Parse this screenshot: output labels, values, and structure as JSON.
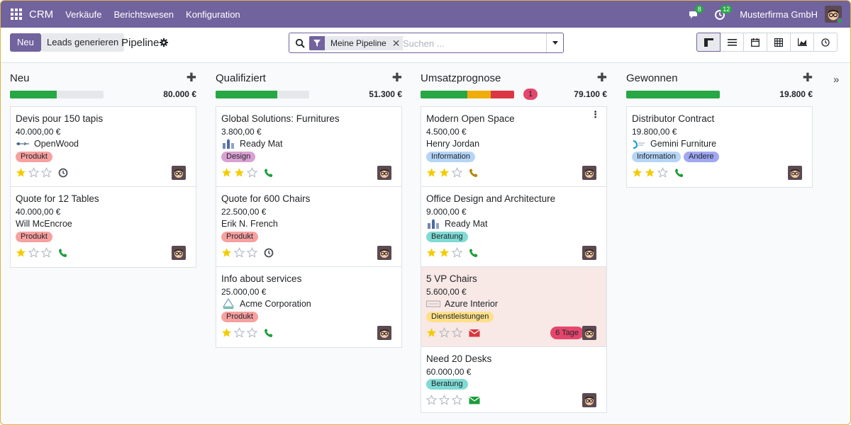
{
  "nav": {
    "brand": "CRM",
    "menu": [
      "Verkäufe",
      "Berichtswesen",
      "Konfiguration"
    ],
    "messages_count": "8",
    "activities_count": "12",
    "company": "Musterfirma GmbH"
  },
  "control": {
    "new_label": "Neu",
    "generate_label": "Leads generieren",
    "title": "Pipeline",
    "facet_label": "Meine Pipeline",
    "search_placeholder": "Suchen ..."
  },
  "colors": {
    "primary": "#71639e",
    "won": "#28a745",
    "planned": "#f0ad0a",
    "overdue": "#dc3545",
    "empty": "#e5e7eb"
  },
  "columns": [
    {
      "title": "Neu",
      "total": "80.000 €",
      "count": "",
      "progress": [
        {
          "color": "#28a745",
          "pct": 50
        }
      ],
      "cards": [
        {
          "name": "Devis pour 150 tapis",
          "amount": "40.000,00 €",
          "partner": "OpenWood",
          "logo": "openwood",
          "tags": [
            {
              "label": "Produkt",
              "color": "#f7a0a0"
            }
          ],
          "stars": 1,
          "activity": "clock",
          "deadline": "",
          "overdue": false
        },
        {
          "name": "Quote for 12 Tables",
          "amount": "40.000,00 €",
          "partner": "Will McEncroe",
          "logo": "",
          "tags": [
            {
              "label": "Produkt",
              "color": "#f7a0a0"
            }
          ],
          "stars": 1,
          "activity": "phone-green",
          "deadline": "",
          "overdue": false
        }
      ]
    },
    {
      "title": "Qualifiziert",
      "total": "51.300 €",
      "count": "",
      "progress": [
        {
          "color": "#28a745",
          "pct": 66
        }
      ],
      "cards": [
        {
          "name": "Global Solutions: Furnitures",
          "amount": "3.800,00 €",
          "partner": "Ready Mat",
          "logo": "readymat",
          "tags": [
            {
              "label": "Design",
              "color": "#d9a1d1"
            }
          ],
          "stars": 2,
          "activity": "phone-green",
          "deadline": "",
          "overdue": false
        },
        {
          "name": "Quote for 600 Chairs",
          "amount": "22.500,00 €",
          "partner": "Erik N. French",
          "logo": "",
          "tags": [
            {
              "label": "Produkt",
              "color": "#f7a0a0"
            }
          ],
          "stars": 1,
          "activity": "clock",
          "deadline": "",
          "overdue": false
        },
        {
          "name": "Info about services",
          "amount": "25.000,00 €",
          "partner": "Acme Corporation",
          "logo": "acme",
          "tags": [
            {
              "label": "Produkt",
              "color": "#f7a0a0"
            }
          ],
          "stars": 1,
          "activity": "phone-green",
          "deadline": "",
          "overdue": false
        }
      ]
    },
    {
      "title": "Umsatzprognose",
      "total": "79.100 €",
      "count": "1",
      "progress": [
        {
          "color": "#28a745",
          "pct": 50
        },
        {
          "color": "#f0ad0a",
          "pct": 25
        },
        {
          "color": "#dc3545",
          "pct": 25
        }
      ],
      "cards": [
        {
          "name": "Modern Open Space",
          "amount": "4.500,00 €",
          "partner": "Henry Jordan",
          "logo": "",
          "tags": [
            {
              "label": "Information",
              "color": "#b6d4f5"
            }
          ],
          "stars": 2,
          "activity": "phone-orange",
          "deadline": "",
          "overdue": false,
          "menu": true
        },
        {
          "name": "Office Design and Architecture",
          "amount": "9.000,00 €",
          "partner": "Ready Mat",
          "logo": "readymat",
          "tags": [
            {
              "label": "Beratung",
              "color": "#7fdbd4"
            }
          ],
          "stars": 2,
          "activity": "phone-green",
          "deadline": "",
          "overdue": false
        },
        {
          "name": "5 VP Chairs",
          "amount": "5.600,00 €",
          "partner": "Azure Interior",
          "logo": "azure",
          "tags": [
            {
              "label": "Dienstleistungen",
              "color": "#ffe08a"
            }
          ],
          "stars": 1,
          "activity": "mail-red",
          "deadline": "6 Tage",
          "overdue": true
        },
        {
          "name": "Need 20 Desks",
          "amount": "60.000,00 €",
          "partner": "",
          "logo": "",
          "tags": [
            {
              "label": "Beratung",
              "color": "#7fdbd4"
            }
          ],
          "stars": 0,
          "activity": "mail-green",
          "deadline": "",
          "overdue": false
        }
      ]
    },
    {
      "title": "Gewonnen",
      "total": "19.800 €",
      "count": "",
      "progress": [
        {
          "color": "#28a745",
          "pct": 100
        }
      ],
      "cards": [
        {
          "name": "Distributor Contract",
          "amount": "19.800,00 €",
          "partner": "Gemini Furniture",
          "logo": "gemini",
          "tags": [
            {
              "label": "Information",
              "color": "#b6d4f5"
            },
            {
              "label": "Andere",
              "color": "#a0a8f2"
            }
          ],
          "stars": 2,
          "activity": "phone-green",
          "deadline": "",
          "overdue": false
        }
      ]
    }
  ]
}
